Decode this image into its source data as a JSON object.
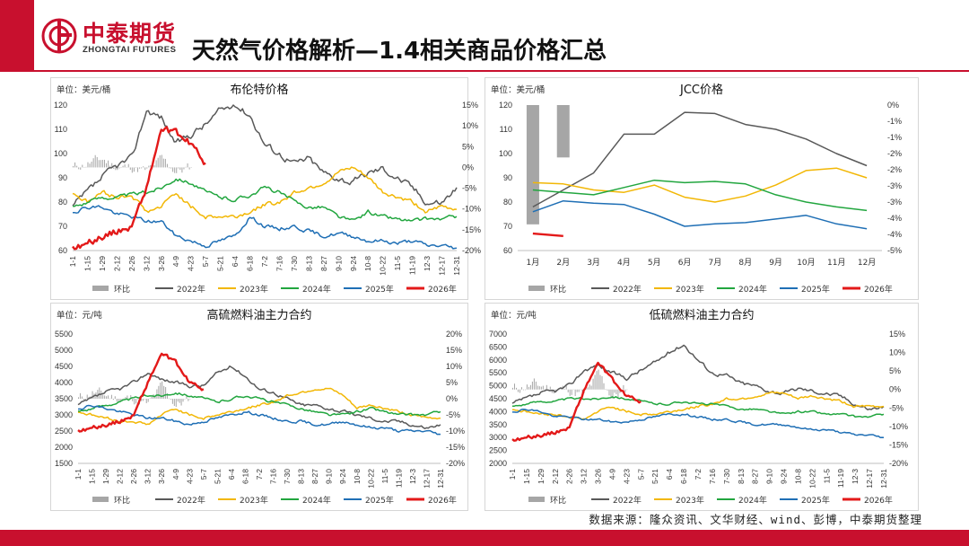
{
  "header": {
    "brand_cn": "中泰期货",
    "brand_en": "ZHONGTAI FUTURES",
    "title": "天然气价格解析—1.4相关商品价格汇总"
  },
  "footer": {
    "source": "数据来源：隆众资讯、文华财经、wind、彭博，中泰期货整理"
  },
  "colors": {
    "brand": "#c8102e",
    "bar": "#a6a6a6",
    "y2022": "#595959",
    "y2023": "#f2b705",
    "y2024": "#22a63f",
    "y2025": "#1f6fb5",
    "y2026": "#e31919"
  },
  "chart_data": [
    {
      "id": "brent",
      "type": "line",
      "title": "布伦特价格",
      "unit": "单位：美元/桶",
      "ylim": [
        60,
        120
      ],
      "yticks": [
        "60",
        "70",
        "80",
        "90",
        "100",
        "110",
        "120"
      ],
      "y2lim": [
        -20,
        15
      ],
      "y2ticks": [
        "-20%",
        "-15%",
        "-10%",
        "-5%",
        "0%",
        "5%",
        "10%",
        "15%"
      ],
      "xticks": [
        "1-1",
        "1-15",
        "1-29",
        "2-12",
        "2-26",
        "3-12",
        "3-26",
        "4-9",
        "4-23",
        "5-7",
        "5-21",
        "6-4",
        "6-18",
        "7-2",
        "7-16",
        "7-30",
        "8-13",
        "8-27",
        "9-10",
        "9-24",
        "10-8",
        "10-22",
        "11-5",
        "11-19",
        "12-3",
        "12-17",
        "12-31"
      ],
      "legend": [
        "环比",
        "2022年",
        "2023年",
        "2024年",
        "2025年",
        "2026年"
      ],
      "series": [
        {
          "name": "2022年",
          "anchors": [
            78,
            84,
            90,
            95,
            98,
            118,
            115,
            104,
            108,
            112,
            118,
            120,
            116,
            104,
            100,
            96,
            98,
            92,
            90,
            88,
            92,
            94,
            90,
            86,
            80,
            80,
            86
          ],
          "noise": 2.5,
          "color": "#595959"
        },
        {
          "name": "2023年",
          "anchors": [
            84,
            80,
            84,
            82,
            83,
            76,
            78,
            84,
            78,
            74,
            74,
            74,
            76,
            79,
            80,
            84,
            86,
            88,
            92,
            94,
            90,
            84,
            82,
            80,
            76,
            78,
            77
          ],
          "noise": 1.6,
          "color": "#f2b705"
        },
        {
          "name": "2024年",
          "anchors": [
            78,
            80,
            82,
            82,
            83,
            84,
            86,
            90,
            88,
            84,
            82,
            81,
            83,
            86,
            84,
            80,
            78,
            78,
            74,
            72,
            76,
            74,
            73,
            72,
            73,
            73,
            74
          ],
          "noise": 1.4,
          "color": "#22a63f"
        },
        {
          "name": "2025年",
          "anchors": [
            76,
            78,
            78,
            75,
            74,
            72,
            72,
            66,
            64,
            62,
            64,
            66,
            74,
            70,
            69,
            70,
            68,
            66,
            67,
            66,
            64,
            64,
            63,
            64,
            62,
            62,
            61
          ],
          "noise": 1.4,
          "color": "#1f6fb5"
        },
        {
          "name": "2026年",
          "anchors": [
            61,
            63,
            66,
            68,
            70,
            86,
            110,
            108,
            104,
            96
          ],
          "noise": 2.5,
          "color": "#e31919"
        }
      ],
      "bars": {
        "anchors": [
          0,
          1,
          2,
          0,
          0,
          -1,
          2,
          -1,
          0,
          -1,
          0,
          0,
          1,
          -1,
          0,
          0,
          0,
          0,
          -1,
          0,
          0,
          -1,
          0,
          0,
          -1,
          0,
          0
        ],
        "noise": 2.2,
        "lim": [
          -20,
          15
        ]
      }
    },
    {
      "id": "jcc",
      "type": "line",
      "title": "JCC价格",
      "unit": "单位：美元/桶",
      "ylim": [
        60,
        120
      ],
      "yticks": [
        "60",
        "70",
        "80",
        "90",
        "100",
        "110",
        "120"
      ],
      "y2lim": [
        -5,
        0
      ],
      "y2ticks": [
        "-5%",
        "-4%",
        "-4%",
        "-3%",
        "-3%",
        "-2%",
        "-2%",
        "-1%",
        "-1%",
        "0%"
      ],
      "xticks": [
        "1月",
        "2月",
        "3月",
        "4月",
        "5月",
        "6月",
        "7月",
        "8月",
        "9月",
        "10月",
        "11月",
        "12月"
      ],
      "legend": [
        "环比",
        "2022年",
        "2023年",
        "2024年",
        "2025年",
        "2026年"
      ],
      "series": [
        {
          "name": "2022年",
          "values": [
            78,
            85,
            92,
            108,
            108,
            117,
            116.5,
            112,
            110,
            106,
            100,
            95
          ],
          "color": "#595959"
        },
        {
          "name": "2023年",
          "values": [
            88,
            87.5,
            85,
            84,
            87,
            82,
            80,
            82.5,
            87,
            93,
            94,
            90
          ],
          "color": "#f2b705"
        },
        {
          "name": "2024年",
          "values": [
            85,
            84,
            83,
            86,
            89,
            88,
            88.5,
            87.5,
            83,
            80,
            78,
            76.5
          ],
          "color": "#22a63f"
        },
        {
          "name": "2025年",
          "values": [
            76,
            80.5,
            79.5,
            79,
            75,
            70,
            71,
            71.5,
            73,
            74.5,
            71,
            69
          ],
          "color": "#1f6fb5"
        },
        {
          "name": "2026年",
          "values": [
            67,
            66
          ],
          "color": "#e31919"
        }
      ],
      "bars": {
        "values": [
          -4.1,
          -1.8
        ],
        "lim": [
          -5,
          0
        ]
      }
    },
    {
      "id": "hsfo",
      "type": "line",
      "title": "高硫燃料油主力合约",
      "unit": "单位：元/吨",
      "ylim": [
        1500,
        5500
      ],
      "yticks": [
        "1500",
        "2000",
        "2500",
        "3000",
        "3500",
        "4000",
        "4500",
        "5000",
        "5500"
      ],
      "y2lim": [
        -20,
        20
      ],
      "y2ticks": [
        "-20%",
        "-15%",
        "-10%",
        "-5%",
        "0%",
        "5%",
        "10%",
        "15%",
        "20%"
      ],
      "xticks": [
        "1-1",
        "1-15",
        "1-29",
        "2-12",
        "2-26",
        "3-12",
        "3-26",
        "4-9",
        "4-23",
        "5-7",
        "5-21",
        "6-4",
        "6-18",
        "7-2",
        "7-16",
        "7-30",
        "8-13",
        "8-27",
        "9-10",
        "9-24",
        "10-8",
        "10-22",
        "11-5",
        "11-19",
        "12-3",
        "12-17",
        "12-31"
      ],
      "legend": [
        "环比",
        "2022年",
        "2023年",
        "2024年",
        "2025年",
        "2026年"
      ],
      "series": [
        {
          "name": "2022年",
          "anchors": [
            3300,
            3500,
            3700,
            3800,
            4000,
            4300,
            4100,
            4000,
            3900,
            3900,
            4300,
            4500,
            4200,
            3800,
            3700,
            3500,
            3300,
            3300,
            3200,
            3100,
            3000,
            2900,
            2800,
            2800,
            2700,
            2600,
            2700
          ],
          "noise": 90,
          "color": "#595959"
        },
        {
          "name": "2023年",
          "anchors": [
            3100,
            3000,
            2900,
            2800,
            2800,
            2700,
            3000,
            3200,
            3000,
            2900,
            3000,
            3100,
            3200,
            3300,
            3400,
            3600,
            3700,
            3800,
            3800,
            3600,
            3200,
            3300,
            3200,
            3100,
            3000,
            2900,
            2900
          ],
          "noise": 70,
          "color": "#f2b705"
        },
        {
          "name": "2024年",
          "anchors": [
            3100,
            3200,
            3300,
            3400,
            3500,
            3600,
            3600,
            3700,
            3600,
            3500,
            3400,
            3500,
            3600,
            3500,
            3400,
            3300,
            3200,
            3100,
            3000,
            3000,
            3100,
            3200,
            3100,
            3000,
            3000,
            3000,
            3100
          ],
          "noise": 70,
          "color": "#22a63f"
        },
        {
          "name": "2025年",
          "anchors": [
            3200,
            3300,
            3200,
            3100,
            3000,
            2900,
            2900,
            2800,
            2700,
            2800,
            2900,
            3000,
            3100,
            3000,
            2900,
            2800,
            2800,
            2700,
            2700,
            2800,
            2700,
            2600,
            2600,
            2500,
            2500,
            2500,
            2400
          ],
          "noise": 70,
          "color": "#1f6fb5"
        },
        {
          "name": "2026年",
          "anchors": [
            2500,
            2600,
            2700,
            2800,
            3000,
            4000,
            4900,
            4600,
            4000,
            3800
          ],
          "noise": 110,
          "color": "#e31919"
        }
      ],
      "bars": {
        "anchors": [
          0,
          2,
          1,
          0,
          0,
          -2,
          4,
          -2,
          0,
          -1,
          0,
          0,
          1,
          -1,
          0,
          0,
          0,
          0,
          -1,
          0,
          0,
          -1,
          0,
          0,
          -1,
          0,
          0
        ],
        "noise": 3,
        "lim": [
          -20,
          20
        ]
      }
    },
    {
      "id": "lsfo",
      "type": "line",
      "title": "低硫燃料油主力合约",
      "unit": "单位：元/吨",
      "ylim": [
        2000,
        7000
      ],
      "yticks": [
        "2000",
        "2500",
        "3000",
        "3500",
        "4000",
        "4500",
        "5000",
        "5500",
        "6000",
        "6500",
        "7000"
      ],
      "y2lim": [
        -20,
        15
      ],
      "y2ticks": [
        "-20%",
        "-15%",
        "-10%",
        "-5%",
        "0%",
        "5%",
        "10%",
        "15%"
      ],
      "xticks": [
        "1-1",
        "1-15",
        "1-29",
        "2-12",
        "2-26",
        "3-12",
        "3-26",
        "4-9",
        "4-23",
        "5-7",
        "5-21",
        "6-4",
        "6-18",
        "7-2",
        "7-16",
        "7-30",
        "8-13",
        "8-27",
        "9-10",
        "9-24",
        "10-8",
        "10-22",
        "11-5",
        "11-19",
        "12-3",
        "12-17",
        "12-31"
      ],
      "legend": [
        "环比",
        "2022年",
        "2023年",
        "2024年",
        "2025年",
        "2026年"
      ],
      "series": [
        {
          "name": "2022年",
          "anchors": [
            4300,
            4500,
            4700,
            4800,
            5000,
            5600,
            5800,
            5500,
            5300,
            5600,
            5900,
            6300,
            6600,
            6000,
            5500,
            5400,
            5100,
            5000,
            4800,
            4700,
            4900,
            4800,
            4700,
            4600,
            4300,
            4100,
            4200
          ],
          "noise": 130,
          "color": "#595959"
        },
        {
          "name": "2023年",
          "anchors": [
            4100,
            4000,
            3900,
            3900,
            3800,
            3700,
            4000,
            4200,
            4000,
            3900,
            3900,
            4000,
            4100,
            4200,
            4300,
            4500,
            4500,
            4600,
            4700,
            4700,
            4500,
            4600,
            4500,
            4400,
            4200,
            4200,
            4200
          ],
          "noise": 90,
          "color": "#f2b705"
        },
        {
          "name": "2024年",
          "anchors": [
            4200,
            4300,
            4400,
            4400,
            4500,
            4500,
            4500,
            4600,
            4500,
            4400,
            4300,
            4300,
            4400,
            4300,
            4300,
            4200,
            4100,
            4100,
            4000,
            3900,
            4000,
            4000,
            3900,
            3900,
            3800,
            3800,
            3900
          ],
          "noise": 70,
          "color": "#22a63f"
        },
        {
          "name": "2025年",
          "anchors": [
            4000,
            4100,
            4000,
            3800,
            3800,
            3700,
            3700,
            3600,
            3600,
            3700,
            3800,
            3900,
            3900,
            3800,
            3700,
            3700,
            3600,
            3500,
            3500,
            3500,
            3400,
            3300,
            3300,
            3200,
            3100,
            3100,
            3000
          ],
          "noise": 70,
          "color": "#1f6fb5"
        },
        {
          "name": "2026年",
          "anchors": [
            2900,
            3000,
            3100,
            3200,
            3400,
            4800,
            5900,
            5200,
            4600,
            4400
          ],
          "noise": 130,
          "color": "#e31919"
        }
      ],
      "bars": {
        "anchors": [
          0,
          1,
          1,
          0,
          0,
          -2,
          4,
          -2,
          0,
          -1,
          0,
          0,
          1,
          -1,
          0,
          0,
          0,
          0,
          -1,
          0,
          0,
          -1,
          0,
          0,
          -1,
          0,
          0
        ],
        "noise": 3,
        "lim": [
          -20,
          15
        ]
      }
    }
  ]
}
